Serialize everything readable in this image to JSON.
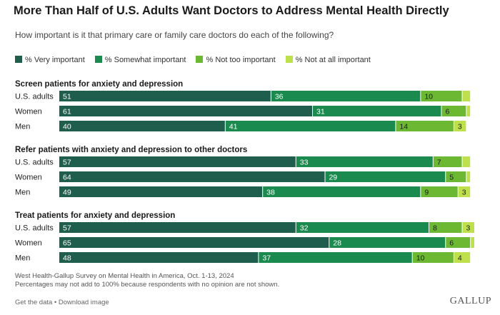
{
  "chart_data": {
    "type": "bar",
    "orientation": "horizontal-stacked",
    "title": "More Than Half of U.S. Adults Want Doctors to Address Mental Health Directly",
    "subtitle": "How important is it that primary care or family care doctors do each of the following?",
    "legend": [
      {
        "name": "% Very important",
        "color": "#1f5e4c"
      },
      {
        "name": "% Somewhat important",
        "color": "#1a8a4e"
      },
      {
        "name": "% Not too important",
        "color": "#6cb833"
      },
      {
        "name": "% Not at all important",
        "color": "#bfe04d"
      }
    ],
    "groups": [
      {
        "label": "Screen patients for anxiety and depression",
        "rows": [
          {
            "label": "U.S. adults",
            "values": [
              51,
              36,
              10,
              2
            ]
          },
          {
            "label": "Women",
            "values": [
              61,
              31,
              6,
              1
            ]
          },
          {
            "label": "Men",
            "values": [
              40,
              41,
              14,
              3
            ]
          }
        ]
      },
      {
        "label": "Refer patients with anxiety and depression to other doctors",
        "rows": [
          {
            "label": "U.S. adults",
            "values": [
              57,
              33,
              7,
              2
            ]
          },
          {
            "label": "Women",
            "values": [
              64,
              29,
              5,
              1
            ]
          },
          {
            "label": "Men",
            "values": [
              49,
              38,
              9,
              3
            ]
          }
        ]
      },
      {
        "label": "Treat patients for anxiety and depression",
        "rows": [
          {
            "label": "U.S. adults",
            "values": [
              57,
              32,
              8,
              3
            ]
          },
          {
            "label": "Women",
            "values": [
              65,
              28,
              6,
              1
            ]
          },
          {
            "label": "Men",
            "values": [
              48,
              37,
              10,
              4
            ]
          }
        ]
      }
    ],
    "xlim": [
      0,
      100
    ],
    "notes": [
      "West Health-Gallup Survey on Mental Health in America, Oct. 1-13, 2024",
      "Percentages may not add to 100% because respondents with no opinion are not shown."
    ]
  },
  "footer": {
    "get_data": "Get the data",
    "separator": " • ",
    "download": "Download image",
    "brand": "GALLUP"
  }
}
